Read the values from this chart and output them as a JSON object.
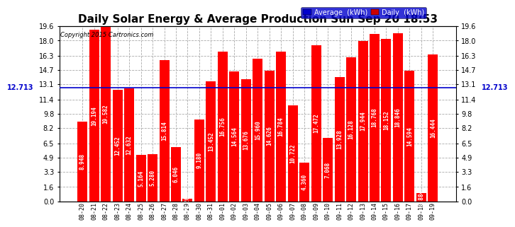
{
  "title": "Daily Solar Energy & Average Production Sun Sep 20 18:53",
  "copyright": "Copyright 2015 Cartronics.com",
  "categories": [
    "08-20",
    "08-21",
    "08-22",
    "08-23",
    "08-24",
    "08-25",
    "08-26",
    "08-27",
    "08-28",
    "08-29",
    "08-30",
    "08-31",
    "09-01",
    "09-02",
    "09-03",
    "09-04",
    "09-05",
    "09-06",
    "09-07",
    "09-08",
    "09-09",
    "09-10",
    "09-11",
    "09-12",
    "09-13",
    "09-14",
    "09-15",
    "09-16",
    "09-17",
    "09-18",
    "09-19"
  ],
  "values": [
    8.948,
    19.194,
    19.582,
    12.452,
    12.632,
    5.164,
    5.28,
    15.814,
    6.046,
    0.268,
    9.18,
    13.452,
    16.756,
    14.564,
    13.676,
    15.96,
    14.626,
    16.784,
    10.722,
    4.36,
    17.472,
    7.068,
    13.928,
    16.128,
    17.944,
    18.768,
    18.152,
    18.846,
    14.594,
    0.884,
    16.444
  ],
  "average": 12.713,
  "bar_color": "#ff0000",
  "avg_line_color": "#0000cc",
  "background_color": "#ffffff",
  "grid_color": "#aaaaaa",
  "ylim": [
    0,
    19.6
  ],
  "yticks": [
    0.0,
    1.6,
    3.3,
    4.9,
    6.5,
    8.2,
    9.8,
    11.4,
    13.1,
    14.7,
    16.3,
    18.0,
    19.6
  ],
  "title_fontsize": 11,
  "bar_label_fontsize": 5.5,
  "tick_fontsize": 7,
  "xtick_fontsize": 6,
  "avg_left_label": "12.713",
  "avg_right_label": "12.713",
  "legend_avg_label": "Average  (kWh)",
  "legend_daily_label": "Daily  (kWh)",
  "legend_avg_bg": "#0000cc",
  "legend_daily_bg": "#cc0000"
}
